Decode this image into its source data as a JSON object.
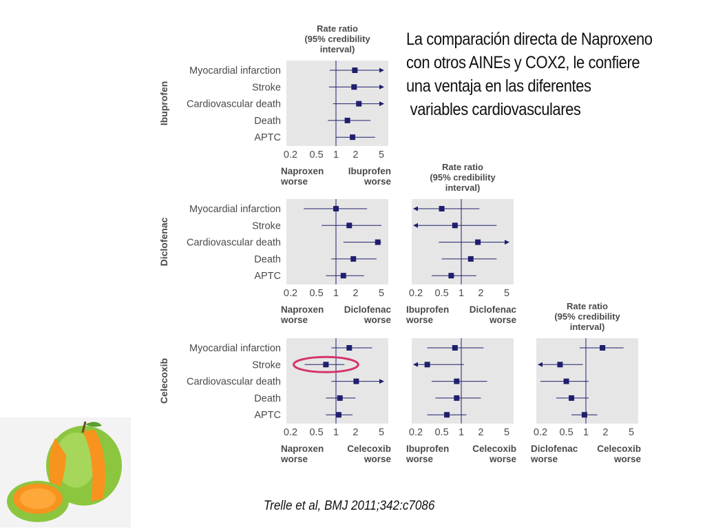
{
  "slide": {
    "title": "La comparación directa de Naproxeno\ncon otros AINEs y COX2, le confiere\nuna ventaja en las diferentes\n variables cardiovasculares",
    "citation": "Trelle et al, BMJ 2011;342:c7086"
  },
  "colors": {
    "marker": "#1f1f6e",
    "panel_bg": "#e6e6e6",
    "highlight": "#d6336c",
    "text": "#4a4a4a"
  },
  "chart_data": [
    {
      "type": "forest",
      "row_group": "Ibuprofen",
      "title": "Rate ratio\n(95% credibility\ninterval)",
      "xscale": "log",
      "xticks": [
        "0.2",
        "0.5",
        "1",
        "2",
        "5"
      ],
      "xlim": [
        0.2,
        5
      ],
      "left_label": "Naproxen\nworse",
      "right_label": "Ibuprofen\nworse",
      "categories": [
        "Myocardial infarction",
        "Stroke",
        "Cardiovascular death",
        "Death",
        "APTC"
      ],
      "estimates": [
        {
          "label": "Myocardial infarction",
          "rr": 1.95,
          "lo": 0.8,
          "hi": 5,
          "hi_arrow": true
        },
        {
          "label": "Stroke",
          "rr": 1.9,
          "lo": 0.78,
          "hi": 5,
          "hi_arrow": true
        },
        {
          "label": "Cardiovascular death",
          "rr": 2.25,
          "lo": 0.9,
          "hi": 5,
          "hi_arrow": true
        },
        {
          "label": "Death",
          "rr": 1.5,
          "lo": 0.75,
          "hi": 3.4
        },
        {
          "label": "APTC",
          "rr": 1.8,
          "lo": 1.0,
          "hi": 4.0
        }
      ]
    },
    {
      "type": "forest",
      "row_group": "Diclofenac",
      "xscale": "log",
      "xticks": [
        "0.2",
        "0.5",
        "1",
        "2",
        "5"
      ],
      "xlim": [
        0.2,
        5
      ],
      "left_label": "Naproxen\nworse",
      "right_label": "Diclofenac\nworse",
      "categories": [
        "Myocardial infarction",
        "Stroke",
        "Cardiovascular death",
        "Death",
        "APTC"
      ],
      "estimates": [
        {
          "label": "Myocardial infarction",
          "rr": 1.0,
          "lo": 0.32,
          "hi": 3.0
        },
        {
          "label": "Stroke",
          "rr": 1.6,
          "lo": 0.6,
          "hi": 5
        },
        {
          "label": "Cardiovascular death",
          "rr": 4.4,
          "lo": 1.3,
          "hi": 5
        },
        {
          "label": "Death",
          "rr": 1.85,
          "lo": 0.85,
          "hi": 4.2
        },
        {
          "label": "APTC",
          "rr": 1.3,
          "lo": 0.7,
          "hi": 2.7
        }
      ]
    },
    {
      "type": "forest",
      "row_group": "Diclofenac",
      "title": "Rate ratio\n(95% credibility\ninterval)",
      "xscale": "log",
      "xticks": [
        "0.2",
        "0.5",
        "1",
        "2",
        "5"
      ],
      "xlim": [
        0.2,
        5
      ],
      "left_label": "Ibuprofen\nworse",
      "right_label": "Diclofenac\nworse",
      "categories": [
        "Myocardial infarction",
        "Stroke",
        "Cardiovascular death",
        "Death",
        "APTC"
      ],
      "estimates": [
        {
          "label": "Myocardial infarction",
          "rr": 0.5,
          "lo": 0.2,
          "hi": 1.9,
          "lo_arrow": true
        },
        {
          "label": "Stroke",
          "rr": 0.8,
          "lo": 0.2,
          "hi": 3.5,
          "lo_arrow": true
        },
        {
          "label": "Cardiovascular death",
          "rr": 1.8,
          "lo": 0.45,
          "hi": 5,
          "hi_arrow": true
        },
        {
          "label": "Death",
          "rr": 1.4,
          "lo": 0.5,
          "hi": 3.5
        },
        {
          "label": "APTC",
          "rr": 0.7,
          "lo": 0.35,
          "hi": 1.7
        }
      ]
    },
    {
      "type": "forest",
      "row_group": "Celecoxib",
      "xscale": "log",
      "xticks": [
        "0.2",
        "0.5",
        "1",
        "2",
        "5"
      ],
      "xlim": [
        0.2,
        5
      ],
      "left_label": "Naproxen\nworse",
      "right_label": "Celecoxib\nworse",
      "categories": [
        "Myocardial infarction",
        "Stroke",
        "Cardiovascular death",
        "Death",
        "APTC"
      ],
      "estimates": [
        {
          "label": "Myocardial infarction",
          "rr": 1.6,
          "lo": 0.85,
          "hi": 3.6
        },
        {
          "label": "Stroke",
          "rr": 0.7,
          "lo": 0.33,
          "hi": 1.35
        },
        {
          "label": "Cardiovascular death",
          "rr": 2.05,
          "lo": 0.85,
          "hi": 5,
          "hi_arrow": true
        },
        {
          "label": "Death",
          "rr": 1.15,
          "lo": 0.7,
          "hi": 2.0
        },
        {
          "label": "APTC",
          "rr": 1.1,
          "lo": 0.7,
          "hi": 1.8
        }
      ],
      "highlight": "Stroke"
    },
    {
      "type": "forest",
      "row_group": "Celecoxib",
      "xscale": "log",
      "xticks": [
        "0.2",
        "0.5",
        "1",
        "2",
        "5"
      ],
      "xlim": [
        0.2,
        5
      ],
      "left_label": "Ibuprofen\nworse",
      "right_label": "Celecoxib\nworse",
      "categories": [
        "Myocardial infarction",
        "Stroke",
        "Cardiovascular death",
        "Death",
        "APTC"
      ],
      "estimates": [
        {
          "label": "Myocardial infarction",
          "rr": 0.8,
          "lo": 0.3,
          "hi": 2.2
        },
        {
          "label": "Stroke",
          "rr": 0.3,
          "lo": 0.2,
          "hi": 1.1,
          "lo_arrow": true
        },
        {
          "label": "Cardiovascular death",
          "rr": 0.85,
          "lo": 0.35,
          "hi": 2.5
        },
        {
          "label": "Death",
          "rr": 0.85,
          "lo": 0.4,
          "hi": 2.0
        },
        {
          "label": "APTC",
          "rr": 0.6,
          "lo": 0.3,
          "hi": 1.2
        }
      ]
    },
    {
      "type": "forest",
      "row_group": "Celecoxib",
      "title": "Rate ratio\n(95% credibility\ninterval)",
      "xscale": "log",
      "xticks": [
        "0.2",
        "0.5",
        "1",
        "2",
        "5"
      ],
      "xlim": [
        0.2,
        5
      ],
      "left_label": "Diclofenac\nworse",
      "right_label": "Celecoxib\nworse",
      "categories": [
        "Myocardial infarction",
        "Stroke",
        "Cardiovascular death",
        "Death",
        "APTC"
      ],
      "estimates": [
        {
          "label": "Myocardial infarction",
          "rr": 1.8,
          "lo": 0.8,
          "hi": 3.8
        },
        {
          "label": "Stroke",
          "rr": 0.4,
          "lo": 0.2,
          "hi": 0.9,
          "lo_arrow": true
        },
        {
          "label": "Cardiovascular death",
          "rr": 0.5,
          "lo": 0.2,
          "hi": 1.1
        },
        {
          "label": "Death",
          "rr": 0.6,
          "lo": 0.35,
          "hi": 1.1
        },
        {
          "label": "APTC",
          "rr": 0.95,
          "lo": 0.6,
          "hi": 1.5
        }
      ]
    }
  ]
}
